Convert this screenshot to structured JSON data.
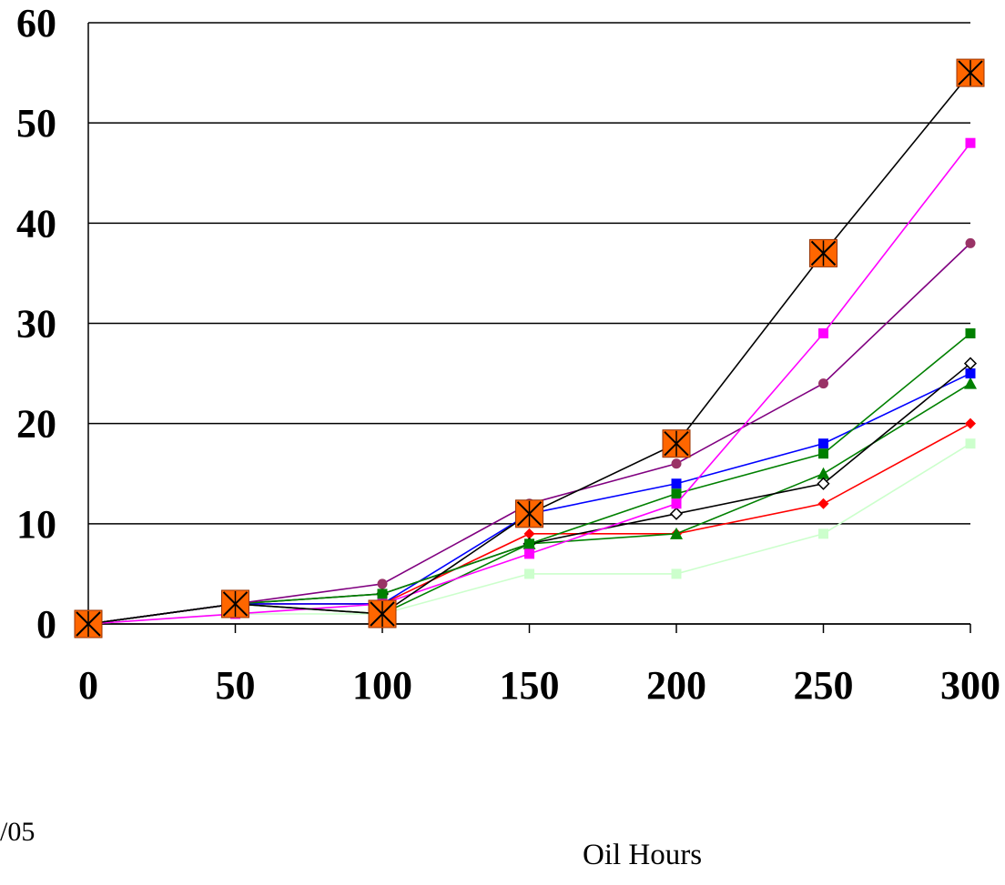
{
  "chart_data": {
    "type": "line",
    "title": "",
    "xlabel": "Oil Hours",
    "ylabel": "",
    "xlim": [
      0,
      300
    ],
    "ylim": [
      0,
      60
    ],
    "x": [
      0,
      50,
      100,
      150,
      200,
      250,
      300
    ],
    "xticks": [
      "0",
      "50",
      "100",
      "150",
      "200",
      "250",
      "300"
    ],
    "yticks": [
      "0",
      "10",
      "20",
      "30",
      "40",
      "50",
      "60"
    ],
    "grid": "horizontal",
    "series": [
      {
        "color": "#000000",
        "marker": "orange-square-x",
        "values": [
          0,
          2,
          1,
          11,
          18,
          37,
          55
        ]
      },
      {
        "color": "#ff00ff",
        "marker": "square",
        "values": [
          0,
          1,
          2,
          7,
          12,
          29,
          48
        ]
      },
      {
        "color": "#800080",
        "markerColor": "#993366",
        "marker": "circle",
        "values": [
          0,
          2,
          4,
          12,
          16,
          24,
          38
        ]
      },
      {
        "color": "#008000",
        "marker": "square",
        "values": [
          0,
          2,
          3,
          8,
          13,
          17,
          29
        ]
      },
      {
        "color": "#000000",
        "markerColor": "#ffffff",
        "marker": "diamond-open",
        "values": [
          0,
          2,
          3,
          8,
          11,
          14,
          26
        ]
      },
      {
        "color": "#0000ff",
        "marker": "square",
        "values": [
          0,
          2,
          2,
          11,
          14,
          18,
          25
        ]
      },
      {
        "color": "#008000",
        "marker": "triangle",
        "values": [
          0,
          2,
          1,
          8,
          9,
          15,
          24
        ]
      },
      {
        "color": "#ff0000",
        "marker": "diamond",
        "values": [
          0,
          2,
          2,
          9,
          9,
          12,
          20
        ]
      },
      {
        "color": "#ccffcc",
        "marker": "square",
        "values": [
          0,
          1,
          1,
          5,
          5,
          9,
          18
        ]
      }
    ]
  },
  "footer": {
    "date_fragment": "/05"
  }
}
